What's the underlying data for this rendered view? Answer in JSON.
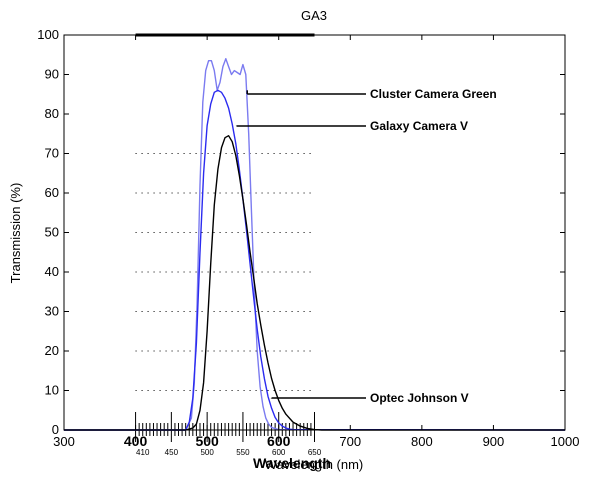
{
  "chart_data": {
    "type": "line",
    "title": "GA3",
    "xlabel": "Wavelength (nm)",
    "xlabel_overlay": "Wavelength",
    "ylabel": "Transmission (%)",
    "xlim": [
      300,
      1000
    ],
    "ylim": [
      0,
      100
    ],
    "xticks": [
      300,
      400,
      500,
      600,
      700,
      800,
      900,
      1000
    ],
    "yticks": [
      0,
      10,
      20,
      30,
      40,
      50,
      60,
      70,
      80,
      90,
      100
    ],
    "bold_xticks": [
      400,
      500,
      600
    ],
    "minor_tick_labels": [
      "410",
      "450",
      "500",
      "550",
      "600",
      "650"
    ],
    "grid": "dotted horizontal lines at 10–70 between 400 and 650 nm",
    "annotations": [
      {
        "text": "Cluster Camera Green",
        "points_to_series": "Cluster Camera Green",
        "x": 556,
        "y": 86
      },
      {
        "text": "Galaxy Camera V",
        "points_to_series": "Galaxy Camera V",
        "x": 541,
        "y": 77
      },
      {
        "text": "Optec Johnson V",
        "points_to_series": "Optec Johnson V",
        "x": 590,
        "y": 8
      }
    ],
    "series": [
      {
        "name": "Cluster Camera Green",
        "color": "#7b7bf0",
        "x": [
          300,
          470,
          478,
          482,
          486,
          490,
          494,
          498,
          502,
          506,
          510,
          514,
          518,
          522,
          526,
          530,
          534,
          538,
          542,
          546,
          550,
          554,
          558,
          562,
          566,
          570,
          574,
          578,
          582,
          586,
          590,
          600,
          1000
        ],
        "y": [
          0,
          0,
          3,
          12,
          32,
          62,
          83,
          91,
          93.5,
          93.5,
          91,
          86,
          88,
          92,
          94,
          92,
          90,
          91,
          90.5,
          90,
          92.5,
          90,
          75,
          55,
          35,
          20,
          11,
          6,
          3,
          1.5,
          0.6,
          0.1,
          0
        ]
      },
      {
        "name": "Galaxy Camera V",
        "color": "#2b2bf0",
        "x": [
          300,
          470,
          475,
          480,
          485,
          490,
          495,
          500,
          505,
          510,
          515,
          520,
          525,
          530,
          535,
          540,
          545,
          550,
          555,
          560,
          565,
          570,
          575,
          580,
          585,
          590,
          595,
          600,
          605,
          610,
          615,
          620,
          1000
        ],
        "y": [
          0,
          0,
          2,
          8,
          22,
          45,
          65,
          77,
          82.5,
          85.5,
          86,
          85.5,
          84,
          81.5,
          77.5,
          72.5,
          66,
          58.5,
          50.5,
          42,
          33.5,
          25.5,
          18.5,
          13,
          8.5,
          5.5,
          3.2,
          1.8,
          1,
          0.5,
          0.2,
          0.1,
          0
        ]
      },
      {
        "name": "Optec Johnson V",
        "color": "#000000",
        "x": [
          300,
          470,
          480,
          485,
          490,
          495,
          500,
          505,
          510,
          515,
          520,
          525,
          530,
          535,
          540,
          545,
          550,
          555,
          560,
          565,
          570,
          575,
          580,
          585,
          590,
          595,
          600,
          605,
          610,
          620,
          630,
          640,
          650,
          660,
          1000
        ],
        "y": [
          0,
          0,
          0.5,
          1.5,
          5,
          12,
          25,
          42,
          57,
          66,
          71.5,
          74,
          74.5,
          73,
          69.5,
          64.5,
          58.5,
          52,
          45,
          38.5,
          32,
          26.5,
          21.5,
          17,
          13,
          10,
          7.5,
          5.5,
          4,
          2,
          1,
          0.4,
          0.1,
          0,
          0
        ]
      }
    ]
  }
}
